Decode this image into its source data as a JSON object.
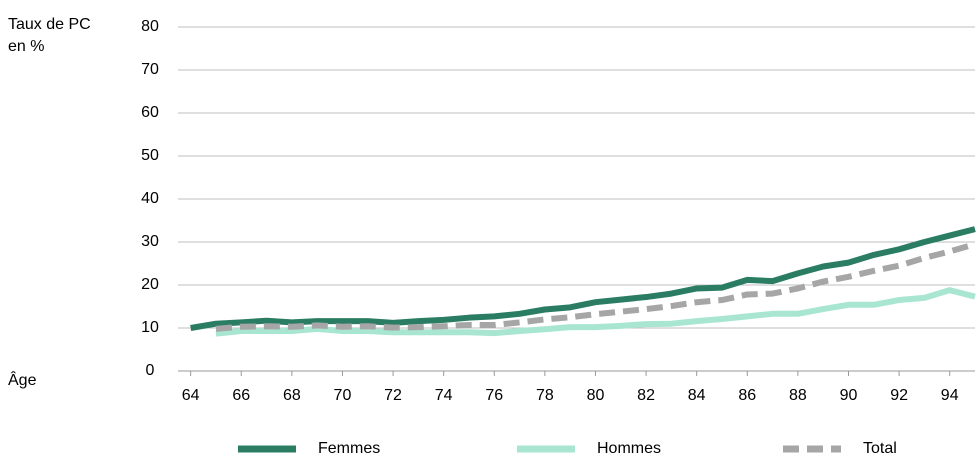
{
  "chart_data": {
    "type": "line",
    "ylabel": "Taux de PC en %",
    "xlabel": "Âge",
    "x": [
      64,
      65,
      66,
      67,
      68,
      69,
      70,
      71,
      72,
      73,
      74,
      75,
      76,
      77,
      78,
      79,
      80,
      81,
      82,
      83,
      84,
      85,
      86,
      87,
      88,
      89,
      90,
      91,
      92,
      93,
      94,
      95
    ],
    "series": [
      {
        "name": "Femmes",
        "color": "#2a7d63",
        "dashed": false,
        "values": [
          10,
          11,
          11.3,
          11.7,
          11.3,
          11.6,
          11.6,
          11.6,
          11.2,
          11.6,
          11.9,
          12.4,
          12.7,
          13.3,
          14.3,
          14.8,
          16,
          16.6,
          17.2,
          18,
          19.2,
          19.4,
          21.2,
          20.9,
          22.7,
          24.3,
          25.2,
          27,
          28.3,
          30,
          31.5,
          33
        ]
      },
      {
        "name": "Hommes",
        "color": "#a8e6d2",
        "dashed": false,
        "values": [
          null,
          8.7,
          9.3,
          9.3,
          9.3,
          9.8,
          9.3,
          9.3,
          9,
          9,
          9,
          9,
          8.8,
          9.3,
          9.7,
          10.2,
          10.2,
          10.5,
          10.9,
          11,
          11.6,
          12.1,
          12.7,
          13.3,
          13.3,
          14.4,
          15.4,
          15.4,
          16.5,
          17,
          18.8,
          17.3
        ]
      },
      {
        "name": "Total",
        "color": "#a6a6a6",
        "dashed": true,
        "values": [
          null,
          9.8,
          10.3,
          10.4,
          10.3,
          10.6,
          10.3,
          10.4,
          10.1,
          10.2,
          10.4,
          10.7,
          10.7,
          11.3,
          12,
          12.5,
          13.2,
          13.8,
          14.4,
          15.1,
          16,
          16.5,
          17.8,
          18,
          19.2,
          20.8,
          21.9,
          23.3,
          24.5,
          26.3,
          27.8,
          29.5
        ]
      }
    ],
    "xlim": [
      63.5,
      95
    ],
    "xticks": [
      64,
      66,
      68,
      70,
      72,
      74,
      76,
      78,
      80,
      82,
      84,
      86,
      88,
      90,
      92,
      94
    ],
    "ylim": [
      0,
      80
    ],
    "yticks": [
      0,
      10,
      20,
      30,
      40,
      50,
      60,
      70,
      80
    ],
    "grid": true
  }
}
